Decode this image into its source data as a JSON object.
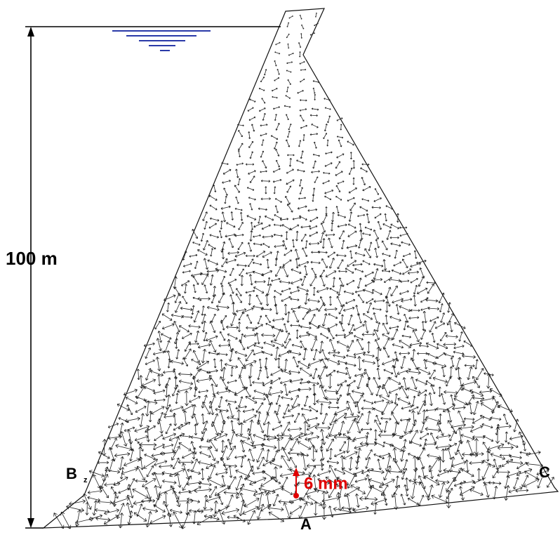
{
  "dimension": {
    "label": "100 m"
  },
  "scale_arrow": {
    "label": "6 mm"
  },
  "points": [
    {
      "label": "A"
    },
    {
      "label": "B"
    },
    {
      "label": "z"
    },
    {
      "label": "C"
    }
  ]
}
